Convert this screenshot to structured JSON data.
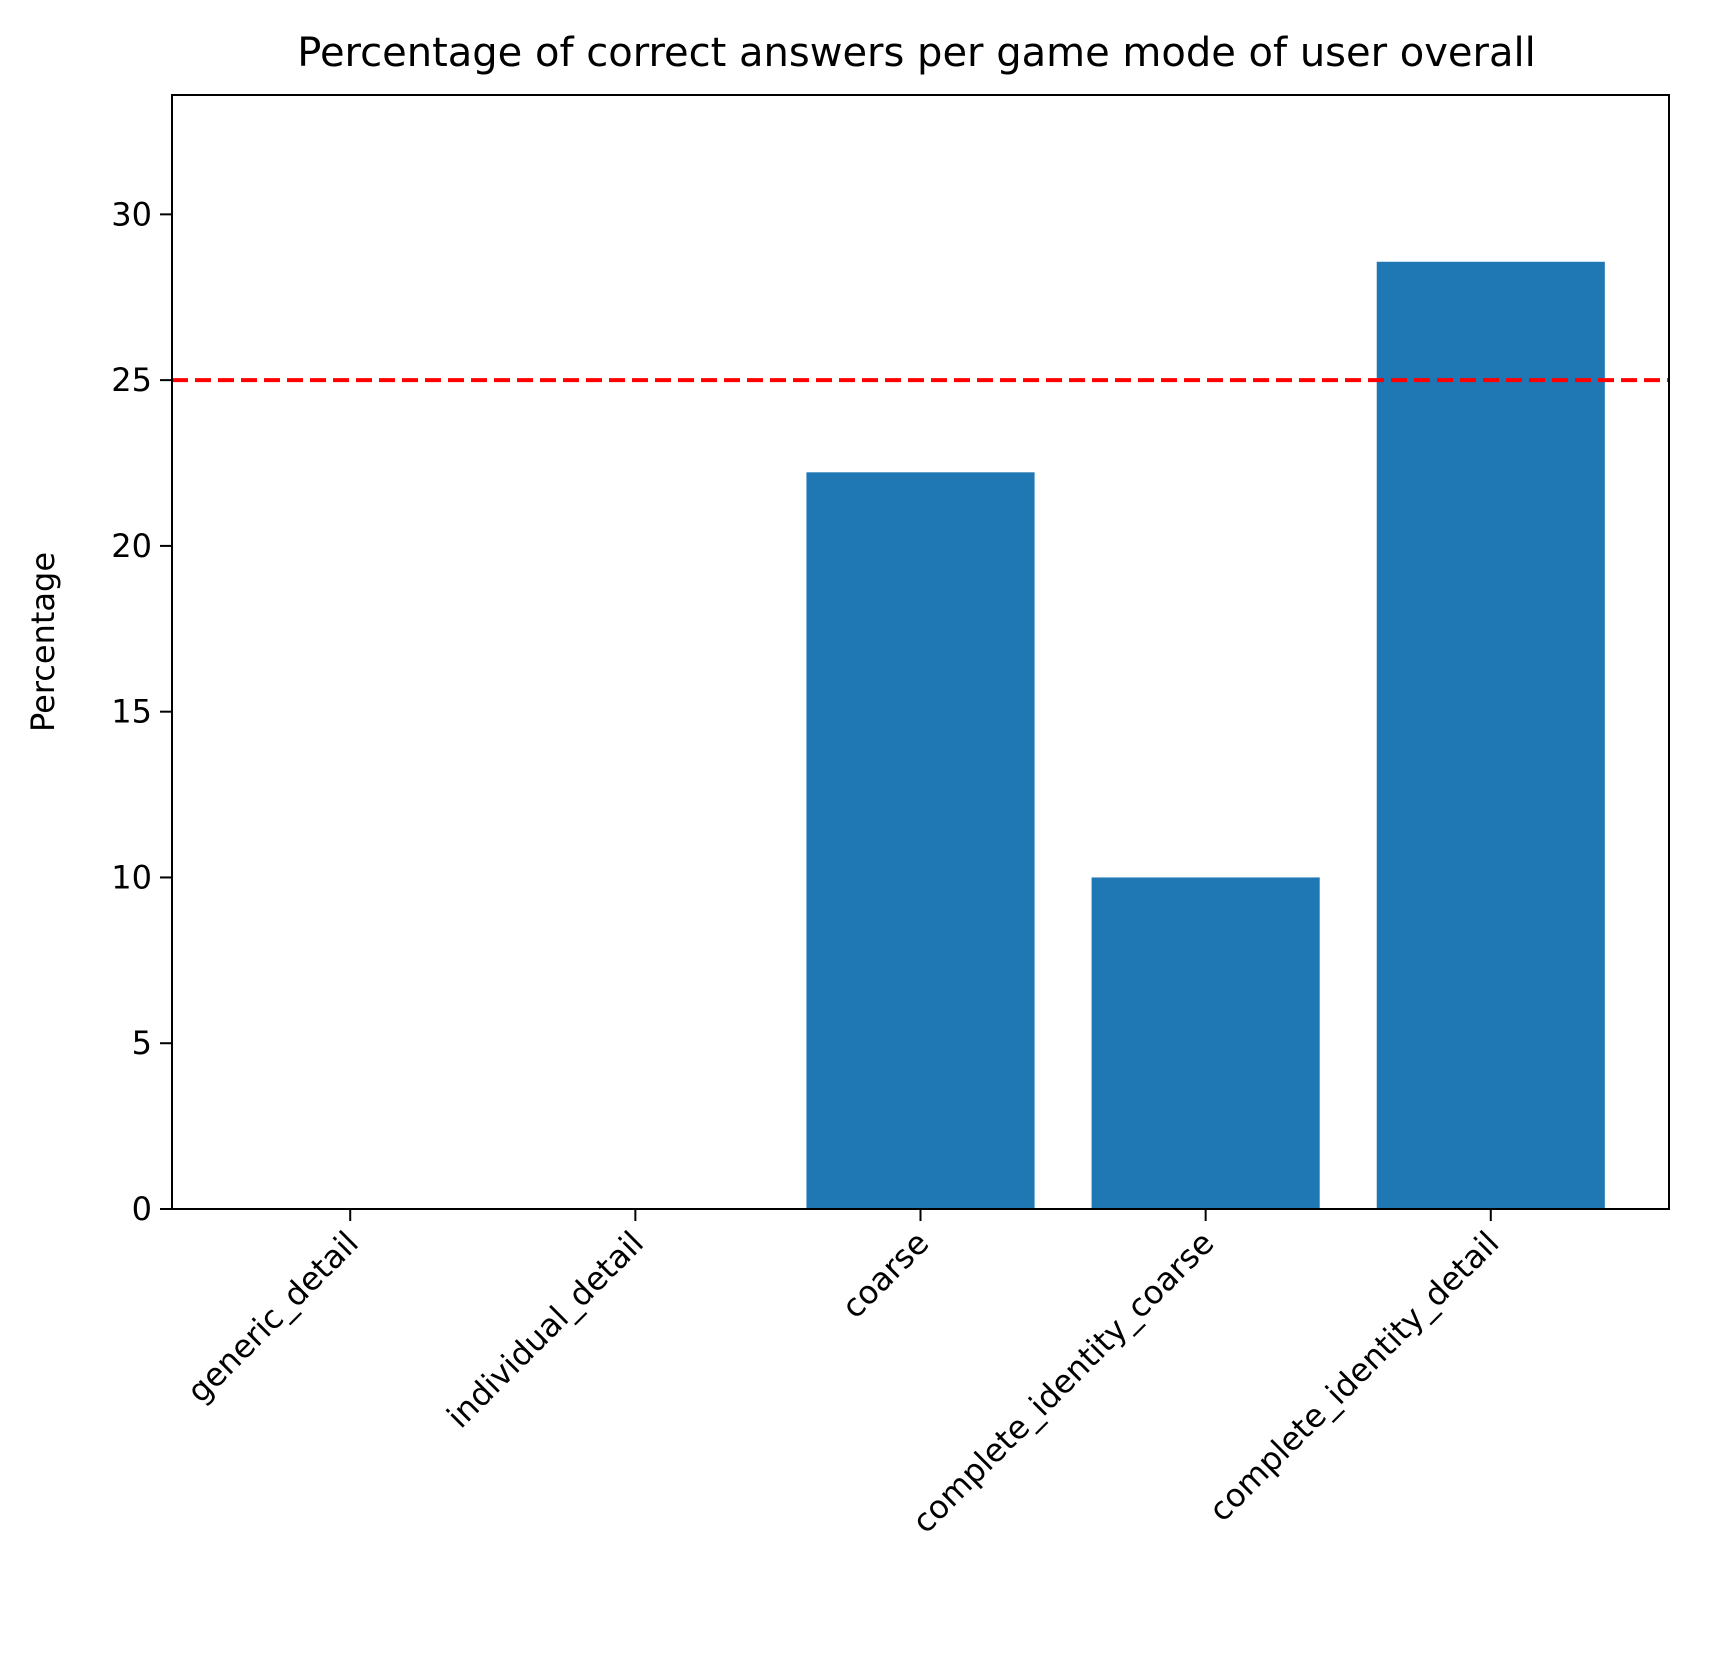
{
  "chart_data": {
    "type": "bar",
    "title": "Percentage of correct answers per game mode of user overall",
    "xlabel": "",
    "ylabel": "Percentage",
    "categories": [
      "generic_detail",
      "individual_detail",
      "coarse",
      "complete_identity_coarse",
      "complete_identity_detail"
    ],
    "values": [
      0,
      0,
      22.22,
      10.0,
      28.57
    ],
    "ylim": [
      0,
      33.6
    ],
    "yticks": [
      "0",
      "5",
      "10",
      "15",
      "20",
      "25",
      "30"
    ],
    "reference_line": {
      "y": 25,
      "style": "dashed",
      "color": "#ff0000"
    },
    "bar_color": "#1f77b4",
    "grid": false,
    "legend": "none"
  }
}
